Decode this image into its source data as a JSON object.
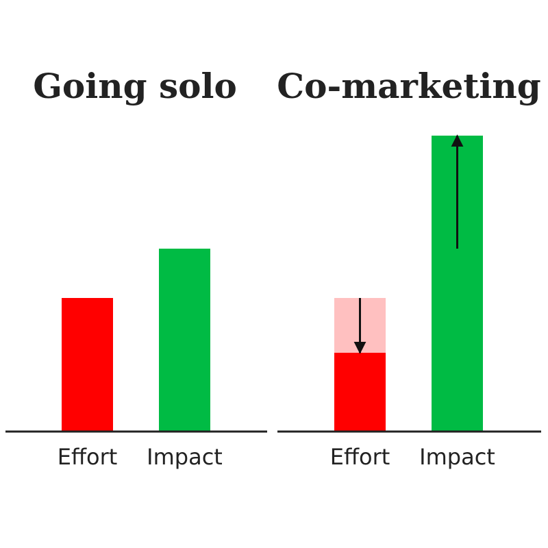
{
  "chart_data": [
    {
      "type": "bar",
      "title": "Going solo",
      "categories": [
        "Effort",
        "Impact"
      ],
      "ylim": [
        0,
        450
      ],
      "series": [
        {
          "color": [
            "#ff0000",
            "#00bb44"
          ],
          "values": [
            195,
            267
          ]
        }
      ]
    },
    {
      "type": "bar",
      "title": "Co-marketing",
      "categories": [
        "Effort",
        "Impact"
      ],
      "ylim": [
        0,
        450
      ],
      "series": [
        {
          "color": [
            "#ffc0c0",
            "#00bb44"
          ],
          "values": [
            195,
            267
          ]
        },
        {
          "color": [
            "#ff0000",
            "#00bb44"
          ],
          "values": [
            115,
            432
          ]
        }
      ],
      "arrows": true
    }
  ]
}
